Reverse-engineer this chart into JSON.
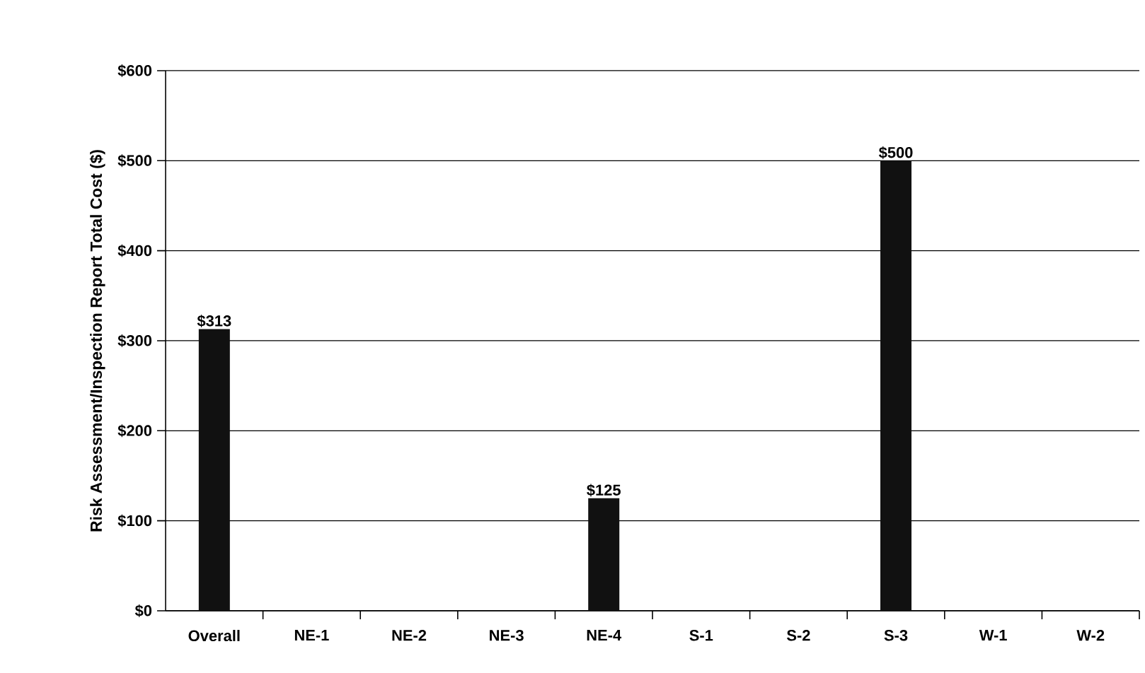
{
  "chart_data": {
    "type": "bar",
    "ylabel": "Risk Assessment/Inspection Report Total Cost ($)",
    "categories": [
      "Overall",
      "NE-1",
      "NE-2",
      "NE-3",
      "NE-4",
      "S-1",
      "S-2",
      "S-3",
      "W-1",
      "W-2"
    ],
    "values": [
      313,
      0,
      0,
      0,
      125,
      0,
      0,
      500,
      0,
      0
    ],
    "value_labels": [
      "$313",
      null,
      null,
      null,
      "$125",
      null,
      null,
      "$500",
      null,
      null
    ],
    "color": "#111111",
    "ylim": [
      0,
      600
    ],
    "yticks": [
      {
        "value": 0,
        "label": "$0"
      },
      {
        "value": 100,
        "label": "$100"
      },
      {
        "value": 200,
        "label": "$200"
      },
      {
        "value": 300,
        "label": "$300"
      },
      {
        "value": 400,
        "label": "$400"
      },
      {
        "value": 500,
        "label": "$500"
      },
      {
        "value": 600,
        "label": "$600"
      }
    ],
    "grid": "y"
  }
}
